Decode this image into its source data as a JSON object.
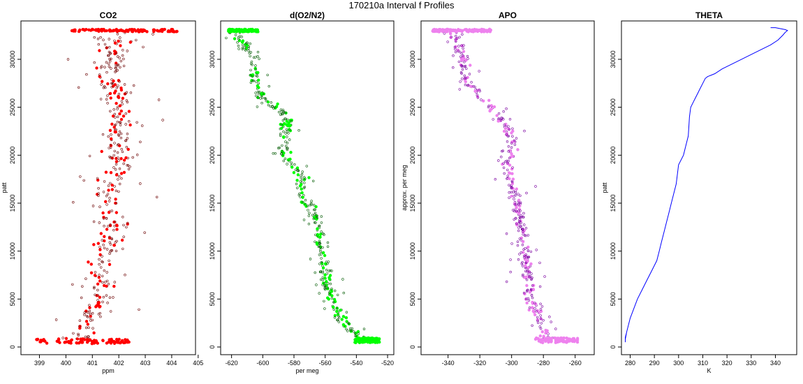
{
  "figure": {
    "title": "170210a   Interval f Profiles"
  },
  "chart_data": [
    {
      "type": "scatter",
      "title": "CO2",
      "xlabel": "ppm",
      "ylabel": "patt",
      "xlim": [
        398.3,
        404.9
      ],
      "ylim": [
        -800,
        34000
      ],
      "xticks": [
        399,
        400,
        401,
        402,
        403,
        404,
        405
      ],
      "yticks": [
        0,
        5000,
        10000,
        15000,
        20000,
        25000,
        30000
      ],
      "point_color": "#ff0000",
      "stroke_color": "#6b0000",
      "profile_x": [
        [
          0,
          400.3
        ],
        [
          1000,
          400.5
        ],
        [
          3000,
          400.9
        ],
        [
          5000,
          401.3
        ],
        [
          8000,
          401.2
        ],
        [
          10000,
          401.4
        ],
        [
          12000,
          401.8
        ],
        [
          15000,
          401.6
        ],
        [
          18000,
          401.9
        ],
        [
          21000,
          402.0
        ],
        [
          24000,
          402.1
        ],
        [
          27000,
          401.9
        ],
        [
          30000,
          401.7
        ],
        [
          32000,
          401.9
        ],
        [
          33000,
          402.0
        ]
      ],
      "x_spread": 0.9,
      "surface_band": {
        "y": 600,
        "xmin": 398.8,
        "xmax": 402.4
      },
      "top_band": {
        "y": 33000,
        "xmin": 400.2,
        "xmax": 404.2
      }
    },
    {
      "type": "scatter",
      "title": "d(O2/N2)",
      "xlabel": "per meg",
      "ylabel": "",
      "xlim": [
        -627,
        -516
      ],
      "ylim": [
        -800,
        34000
      ],
      "xticks": [
        -620,
        -600,
        -580,
        -560,
        -540,
        -520
      ],
      "yticks": [
        0,
        5000,
        10000,
        15000,
        20000,
        25000,
        30000
      ],
      "point_color": "#00ff00",
      "stroke_color": "#005a00",
      "profile_x": [
        [
          0,
          -532
        ],
        [
          1000,
          -537
        ],
        [
          2500,
          -548
        ],
        [
          4000,
          -553
        ],
        [
          6000,
          -558
        ],
        [
          8000,
          -560
        ],
        [
          10000,
          -562
        ],
        [
          12000,
          -565
        ],
        [
          14000,
          -568
        ],
        [
          16000,
          -575
        ],
        [
          18000,
          -575
        ],
        [
          20000,
          -588
        ],
        [
          22000,
          -585
        ],
        [
          24000,
          -584
        ],
        [
          26000,
          -600
        ],
        [
          28000,
          -605
        ],
        [
          30000,
          -604
        ],
        [
          31500,
          -612
        ],
        [
          32500,
          -618
        ],
        [
          33000,
          -615
        ]
      ],
      "x_spread": 6,
      "surface_band": {
        "y": 700,
        "xmin": -541,
        "xmax": -525
      },
      "top_band": {
        "y": 33000,
        "xmin": -622,
        "xmax": -603
      }
    },
    {
      "type": "scatter",
      "title": "APO",
      "xlabel": "",
      "ylabel": "approx. per meg",
      "xlim": [
        -357,
        -248
      ],
      "ylim": [
        -800,
        34000
      ],
      "xticks": [
        -340,
        -320,
        -300,
        -280,
        -260
      ],
      "yticks": [
        0,
        5000,
        10000,
        15000,
        20000,
        25000,
        30000
      ],
      "point_color": "#ee82ee",
      "stroke_color": "#7a00a0",
      "profile_x": [
        [
          0,
          -272
        ],
        [
          1000,
          -277
        ],
        [
          3000,
          -283
        ],
        [
          5000,
          -288
        ],
        [
          8000,
          -290
        ],
        [
          10000,
          -292
        ],
        [
          12000,
          -293
        ],
        [
          15000,
          -297
        ],
        [
          18000,
          -302
        ],
        [
          21000,
          -300
        ],
        [
          23000,
          -303
        ],
        [
          25000,
          -313
        ],
        [
          28000,
          -330
        ],
        [
          30000,
          -330
        ],
        [
          32000,
          -335
        ],
        [
          33000,
          -338
        ]
      ],
      "x_spread": 6,
      "surface_band": {
        "y": 700,
        "xmin": -285,
        "xmax": -258
      },
      "top_band": {
        "y": 33000,
        "xmin": -350,
        "xmax": -313
      }
    },
    {
      "type": "line",
      "title": "THETA",
      "xlabel": "K",
      "ylabel": "patt",
      "xlim": [
        276.4,
        348.8
      ],
      "ylim": [
        -800,
        34000
      ],
      "xticks": [
        280,
        290,
        300,
        310,
        320,
        330,
        340
      ],
      "yticks": [
        0,
        5000,
        10000,
        15000,
        20000,
        25000,
        30000
      ],
      "line_color": "#0000ff",
      "series": [
        {
          "x": [
            278,
            278,
            278.5,
            278,
            278.4,
            279,
            280,
            281.5,
            283,
            285,
            287,
            289,
            291,
            292,
            293,
            294,
            295,
            296,
            297,
            298,
            299,
            300,
            302,
            303,
            304,
            304.5,
            305,
            306,
            307,
            308,
            309,
            310,
            311,
            312,
            315,
            318,
            322,
            326,
            330,
            334,
            338,
            341,
            343,
            344,
            345,
            344,
            342,
            340,
            338
          ],
          "y": [
            500,
            1000,
            1500,
            800,
            1400,
            2000,
            3000,
            4000,
            5000,
            6000,
            7000,
            8000,
            9000,
            10000,
            11000,
            12000,
            13000,
            14000,
            15000,
            16000,
            17000,
            19000,
            20000,
            21000,
            22000,
            24000,
            25000,
            25500,
            26000,
            26500,
            27000,
            27500,
            28000,
            28200,
            28500,
            29000,
            29500,
            30000,
            30500,
            31000,
            31500,
            32000,
            32500,
            32800,
            33000,
            33100,
            33200,
            33300,
            33300
          ]
        }
      ]
    }
  ]
}
